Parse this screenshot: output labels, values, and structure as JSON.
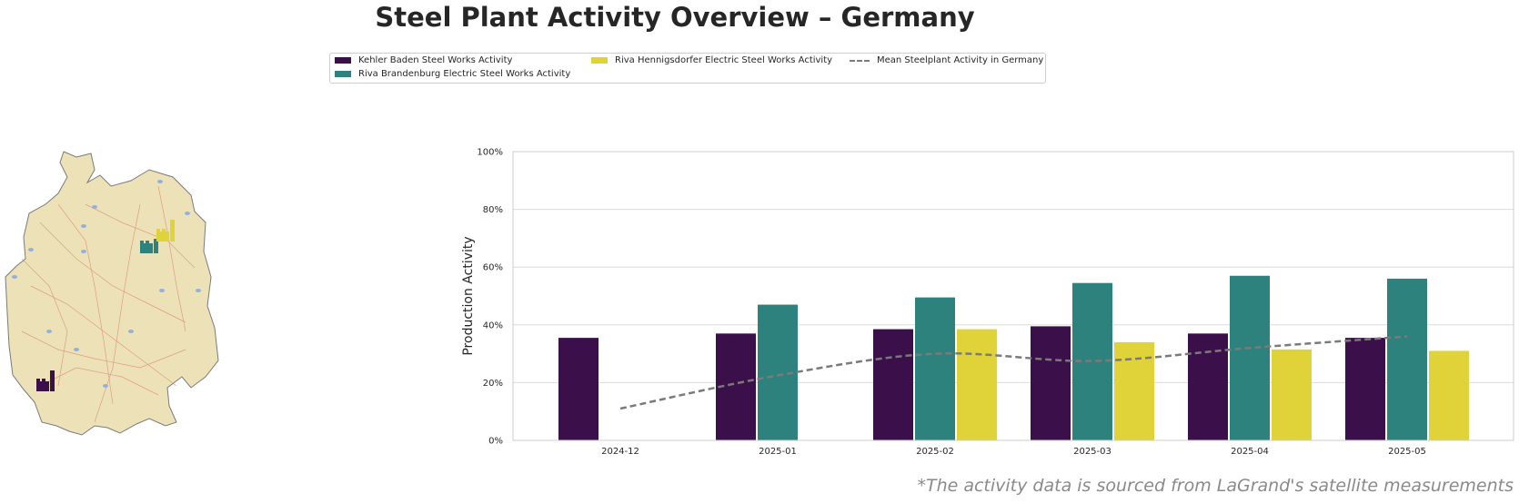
{
  "title": "Steel Plant Activity Overview – Germany",
  "legend": {
    "items": [
      {
        "label": "Kehler Baden Steel Works Activity",
        "color": "#3b0f4a",
        "kind": "bar"
      },
      {
        "label": "Riva Brandenburg Electric Steel Works Activity",
        "color": "#2e827d",
        "kind": "bar"
      },
      {
        "label": "Riva Hennigsdorfer Electric Steel Works Activity",
        "color": "#e0d33a",
        "kind": "bar"
      },
      {
        "label": "Mean Steelplant Activity in Germany",
        "color": "#7a7a7a",
        "kind": "line"
      }
    ]
  },
  "source_note": "*The activity data is sourced from LaGrand's satellite measurements",
  "map": {
    "icons": [
      {
        "name": "factory-icon-kehler",
        "color": "#3b0f4a"
      },
      {
        "name": "factory-icon-brandenburg",
        "color": "#2e827d"
      },
      {
        "name": "factory-icon-hennigsdorf",
        "color": "#e0d33a"
      }
    ]
  },
  "chart_data": {
    "type": "bar",
    "categories": [
      "2024-12",
      "2025-01",
      "2025-02",
      "2025-03",
      "2025-04",
      "2025-05"
    ],
    "series": [
      {
        "name": "Kehler Baden Steel Works Activity",
        "color": "#3b0f4a",
        "values": [
          35.5,
          37,
          38.5,
          39.5,
          37,
          35.5
        ]
      },
      {
        "name": "Riva Brandenburg Electric Steel Works Activity",
        "color": "#2e827d",
        "values": [
          null,
          47,
          49.5,
          54.5,
          57,
          56
        ]
      },
      {
        "name": "Riva Hennigsdorfer Electric Steel Works Activity",
        "color": "#e0d33a",
        "values": [
          null,
          null,
          38.5,
          34,
          31.5,
          31
        ]
      }
    ],
    "line": {
      "name": "Mean Steelplant Activity in Germany",
      "color": "#7a7a7a",
      "values": [
        11,
        22.5,
        30,
        27.5,
        32,
        36
      ]
    },
    "ylabel": "Production Activity",
    "xlabel": "",
    "ylim": [
      0,
      100
    ],
    "yticks": [
      "0%",
      "20%",
      "40%",
      "60%",
      "80%",
      "100%"
    ],
    "grid": true,
    "legend_position": "top"
  }
}
